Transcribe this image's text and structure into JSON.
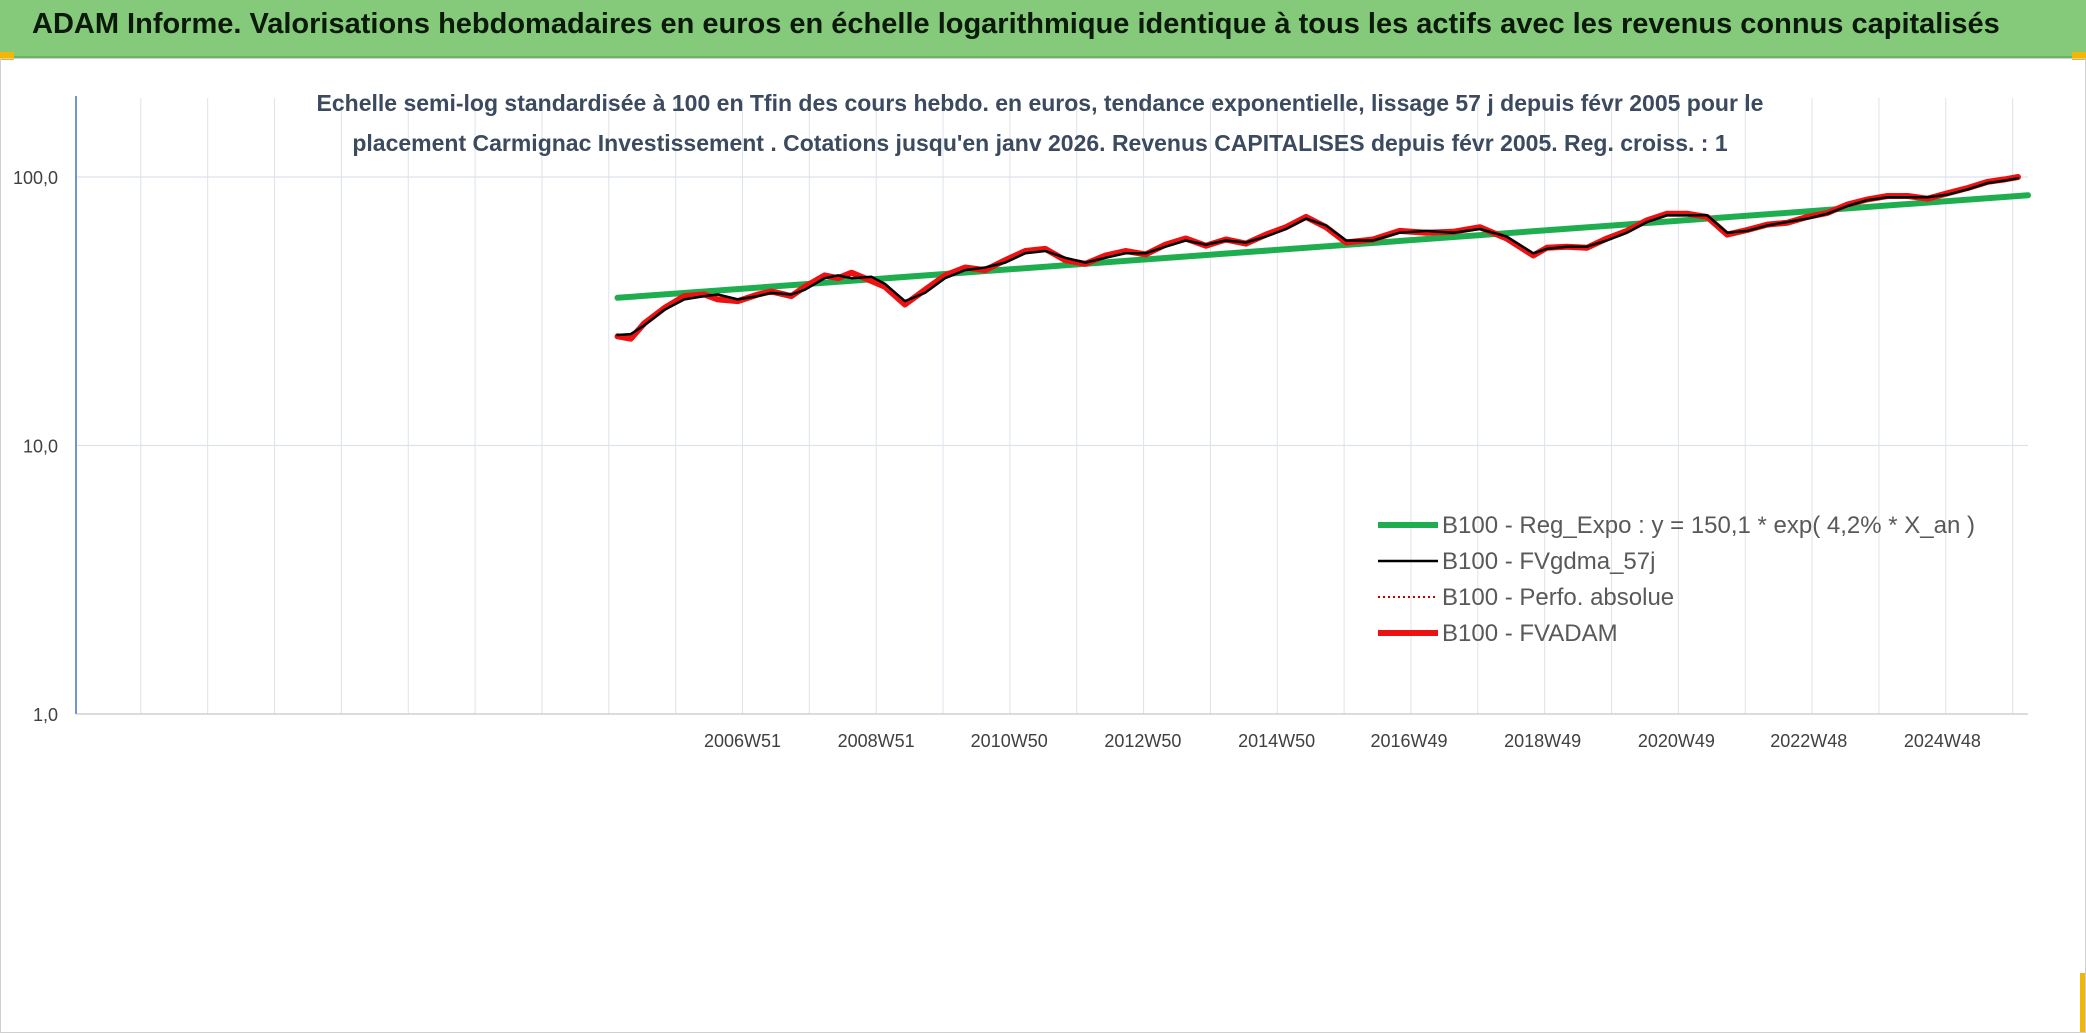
{
  "header": {
    "title": "ADAM Informe. Valorisations hebdomadaires en euros en échelle logarithmique identique à tous les actifs avec les revenus connus capitalisés"
  },
  "colors": {
    "header_bg": "#85c97a",
    "regression": "#1fae4f",
    "fvgdma": "#000000",
    "perfo": "#c00000",
    "fvadam": "#ee1111",
    "gridline": "#dde3ea",
    "axis": "#4472c4",
    "corner_accent": "#f2b705"
  },
  "chart_data": {
    "type": "line",
    "title_lines": [
      "Echelle semi-log standardisée à 100 en Tfin des cours hebdo. en euros, tendance exponentielle, lissage 57 j depuis févr 2005 pour le",
      "placement Carmignac Investissement . Cotations jusqu'en janv 2026. Revenus CAPITALISES depuis févr 2005. Reg. croiss. : 1"
    ],
    "y_scale": "log",
    "ylim": [
      1,
      100
    ],
    "y_ticks": [
      {
        "value": 100,
        "label": "100,0"
      },
      {
        "value": 10,
        "label": "10,0"
      },
      {
        "value": 1,
        "label": "1,0"
      }
    ],
    "xlim": [
      1997.0,
      2026.2
    ],
    "x_ticks": [
      {
        "value": 2006.97,
        "label": "2006W51"
      },
      {
        "value": 2008.97,
        "label": "2008W51"
      },
      {
        "value": 2010.96,
        "label": "2010W50"
      },
      {
        "value": 2012.96,
        "label": "2012W50"
      },
      {
        "value": 2014.96,
        "label": "2014W50"
      },
      {
        "value": 2016.94,
        "label": "2016W49"
      },
      {
        "value": 2018.94,
        "label": "2018W49"
      },
      {
        "value": 2020.94,
        "label": "2020W49"
      },
      {
        "value": 2022.92,
        "label": "2022W48"
      },
      {
        "value": 2024.92,
        "label": "2024W48"
      }
    ],
    "legend_position": "right",
    "series": [
      {
        "name": "B100 - Reg_Expo : y = 150,1 * exp( 4,2% *  X_an )",
        "style": "solid-thick",
        "color": "#1fae4f",
        "x": [
          2005.1,
          2026.2
        ],
        "y": [
          35.5,
          85.5
        ]
      },
      {
        "name": "B100 - FVgdma_57j",
        "style": "solid-thin",
        "color": "#000000",
        "x": [
          2005.1,
          2005.3,
          2005.5,
          2005.8,
          2006.1,
          2006.4,
          2006.6,
          2006.9,
          2007.2,
          2007.4,
          2007.7,
          2007.9,
          2008.2,
          2008.4,
          2008.6,
          2008.9,
          2009.1,
          2009.4,
          2009.7,
          2010.0,
          2010.3,
          2010.6,
          2010.9,
          2011.2,
          2011.5,
          2011.8,
          2012.1,
          2012.4,
          2012.7,
          2013.0,
          2013.3,
          2013.6,
          2013.9,
          2014.2,
          2014.5,
          2014.8,
          2015.1,
          2015.4,
          2015.7,
          2016.0,
          2016.4,
          2016.8,
          2017.2,
          2017.6,
          2018.0,
          2018.4,
          2018.8,
          2019.0,
          2019.3,
          2019.6,
          2019.9,
          2020.2,
          2020.5,
          2020.8,
          2021.1,
          2021.4,
          2021.7,
          2022.0,
          2022.3,
          2022.6,
          2022.9,
          2023.2,
          2023.5,
          2023.8,
          2024.1,
          2024.4,
          2024.7,
          2025.0,
          2025.3,
          2025.6,
          2025.85,
          2026.05
        ],
        "y": [
          25.8,
          26,
          28,
          32,
          35,
          36,
          36.5,
          35,
          36,
          37,
          36.5,
          38,
          42,
          43,
          42,
          42.5,
          40,
          34.5,
          37,
          42,
          45,
          46,
          48,
          52,
          53,
          50,
          48,
          50,
          52,
          52,
          55,
          58,
          56,
          58,
          57,
          60,
          64,
          70,
          66,
          58,
          58,
          62,
          63,
          62,
          64,
          60,
          52,
          54,
          55,
          55,
          58,
          62,
          68,
          72,
          72,
          72,
          62,
          63,
          66,
          68,
          70,
          73,
          78,
          82,
          84,
          84,
          84,
          86,
          90,
          95,
          97,
          99
        ]
      },
      {
        "name": "B100 - Perfo. absolue",
        "style": "dotted",
        "color": "#c00000",
        "x": [],
        "y": []
      },
      {
        "name": "B100 - FVADAM",
        "style": "solid-thick",
        "color": "#ee1111",
        "x": [
          2005.1,
          2005.3,
          2005.5,
          2005.8,
          2006.1,
          2006.4,
          2006.6,
          2006.9,
          2007.2,
          2007.4,
          2007.7,
          2007.9,
          2008.2,
          2008.4,
          2008.6,
          2008.9,
          2009.1,
          2009.4,
          2009.7,
          2010.0,
          2010.3,
          2010.6,
          2010.9,
          2011.2,
          2011.5,
          2011.8,
          2012.1,
          2012.4,
          2012.7,
          2013.0,
          2013.3,
          2013.6,
          2013.9,
          2014.2,
          2014.5,
          2014.8,
          2015.1,
          2015.4,
          2015.7,
          2016.0,
          2016.4,
          2016.8,
          2017.2,
          2017.6,
          2018.0,
          2018.4,
          2018.8,
          2019.0,
          2019.3,
          2019.6,
          2019.9,
          2020.2,
          2020.5,
          2020.8,
          2021.1,
          2021.4,
          2021.7,
          2022.0,
          2022.3,
          2022.6,
          2022.9,
          2023.2,
          2023.5,
          2023.8,
          2024.1,
          2024.4,
          2024.7,
          2025.0,
          2025.3,
          2025.6,
          2025.85,
          2026.05
        ],
        "y": [
          25.5,
          25,
          28.5,
          32.5,
          36,
          36.5,
          35,
          34.5,
          36.5,
          37.5,
          36,
          39,
          43,
          42,
          44,
          41,
          39,
          33.5,
          38,
          43,
          46,
          45,
          49,
          53,
          54,
          49,
          47.5,
          51,
          53,
          51.5,
          56,
          59,
          55.5,
          58.5,
          56.5,
          61,
          65,
          71,
          65,
          57,
          58.5,
          63,
          62,
          62.5,
          65,
          59,
          51,
          54.5,
          55,
          54.5,
          59,
          63,
          69,
          73,
          73,
          71,
          61,
          63.5,
          66.5,
          67.5,
          71,
          73.5,
          79,
          82.5,
          85,
          85,
          83,
          87,
          91,
          96,
          98,
          100
        ]
      }
    ]
  }
}
